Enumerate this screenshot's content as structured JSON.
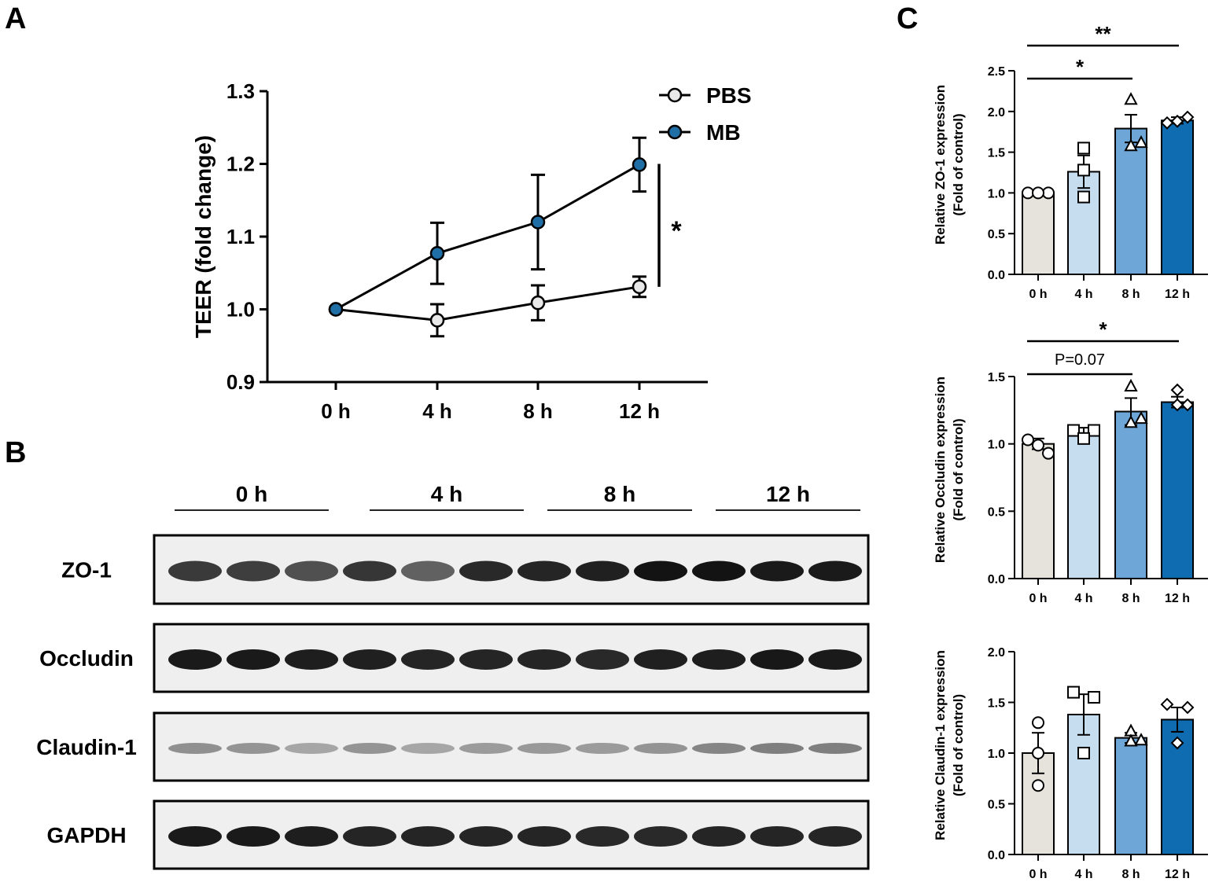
{
  "panels": {
    "a": "A",
    "b": "B",
    "c": "C"
  },
  "colors": {
    "pbs": "#e8e8e8",
    "mb": "#1f6ea6",
    "bar_0h": "#e6e3dc",
    "bar_4h": "#c6dcef",
    "bar_8h": "#6ea6d8",
    "bar_12h": "#0f6cb0"
  },
  "chart_data": [
    {
      "type": "line",
      "panel": "A",
      "ylabel": "TEER (fold change)",
      "categories": [
        "0 h",
        "4 h",
        "8 h",
        "12 h"
      ],
      "ylim": [
        0.9,
        1.3
      ],
      "yticks": [
        "0.9",
        "1.0",
        "1.1",
        "1.2",
        "1.3"
      ],
      "legend_position": "top-right",
      "series": [
        {
          "name": "PBS",
          "values": [
            1.0,
            0.985,
            1.009,
            1.031
          ],
          "errors": [
            0,
            0.022,
            0.024,
            0.014
          ]
        },
        {
          "name": "MB",
          "values": [
            1.0,
            1.077,
            1.12,
            1.199
          ],
          "errors": [
            0,
            0.042,
            0.065,
            0.037
          ]
        }
      ],
      "significance": "*"
    },
    {
      "type": "blot",
      "panel": "B",
      "groups": [
        "0 h",
        "4 h",
        "8 h",
        "12 h"
      ],
      "lanes_per_group": 3,
      "rows": [
        {
          "label": "ZO-1",
          "intensity": [
            0.8,
            0.78,
            0.7,
            0.82,
            0.62,
            0.88,
            0.9,
            0.92,
            0.98,
            0.98,
            0.95,
            0.95
          ]
        },
        {
          "label": "Occludin",
          "intensity": [
            0.95,
            0.95,
            0.93,
            0.92,
            0.9,
            0.9,
            0.9,
            0.88,
            0.92,
            0.93,
            0.96,
            0.95
          ]
        },
        {
          "label": "Claudin-1",
          "intensity": [
            0.4,
            0.38,
            0.3,
            0.38,
            0.3,
            0.35,
            0.36,
            0.35,
            0.38,
            0.45,
            0.48,
            0.48
          ]
        },
        {
          "label": "GAPDH",
          "intensity": [
            0.95,
            0.95,
            0.93,
            0.9,
            0.9,
            0.9,
            0.9,
            0.88,
            0.88,
            0.9,
            0.9,
            0.9
          ]
        }
      ]
    },
    {
      "type": "bar",
      "panel": "C",
      "ylabel": [
        "Relative ZO-1 expression",
        "(Fold of control)"
      ],
      "categories": [
        "0 h",
        "4 h",
        "8 h",
        "12 h"
      ],
      "ylim": [
        0,
        2.5
      ],
      "yticks": [
        "0.0",
        "0.5",
        "1.0",
        "1.5",
        "2.0",
        "2.5"
      ],
      "values": [
        1.0,
        1.26,
        1.79,
        1.89
      ],
      "errors": [
        0.01,
        0.2,
        0.17,
        0.04
      ],
      "points": [
        [
          1.0,
          1.0,
          1.0
        ],
        [
          1.55,
          0.95,
          1.28
        ],
        [
          2.15,
          1.62,
          1.58
        ],
        [
          1.86,
          1.93,
          1.88
        ]
      ],
      "significance": [
        {
          "from": 0,
          "to": 2,
          "label": "*"
        },
        {
          "from": 0,
          "to": 3,
          "label": "**"
        }
      ]
    },
    {
      "type": "bar",
      "panel": "C",
      "ylabel": [
        "Relative Occludin expression",
        "(Fold of control)"
      ],
      "categories": [
        "0 h",
        "4 h",
        "8 h",
        "12 h"
      ],
      "ylim": [
        0,
        1.5
      ],
      "yticks": [
        "0.0",
        "0.5",
        "1.0",
        "1.5"
      ],
      "values": [
        1.0,
        1.08,
        1.24,
        1.31
      ],
      "errors": [
        0.04,
        0.04,
        0.1,
        0.04
      ],
      "points": [
        [
          1.03,
          0.93,
          0.99
        ],
        [
          1.1,
          1.1,
          1.04
        ],
        [
          1.43,
          1.19,
          1.16
        ],
        [
          1.4,
          1.29,
          1.29
        ]
      ],
      "significance": [
        {
          "from": 0,
          "to": 2,
          "label": "P=0.07"
        },
        {
          "from": 0,
          "to": 3,
          "label": "*"
        }
      ]
    },
    {
      "type": "bar",
      "panel": "C",
      "ylabel": [
        "Relative Claudin-1 expression",
        "(Fold of control)"
      ],
      "categories": [
        "0 h",
        "4 h",
        "8 h",
        "12 h"
      ],
      "ylim": [
        0,
        2.0
      ],
      "yticks": [
        "0.0",
        "0.5",
        "1.0",
        "1.5",
        "2.0"
      ],
      "values": [
        1.0,
        1.38,
        1.15,
        1.33
      ],
      "errors": [
        0.2,
        0.2,
        0.05,
        0.12
      ],
      "points": [
        [
          1.3,
          0.68,
          1.0
        ],
        [
          1.6,
          1.55,
          1.0
        ],
        [
          1.22,
          1.13,
          1.12
        ],
        [
          1.48,
          1.45,
          1.1
        ]
      ],
      "significance": []
    }
  ]
}
